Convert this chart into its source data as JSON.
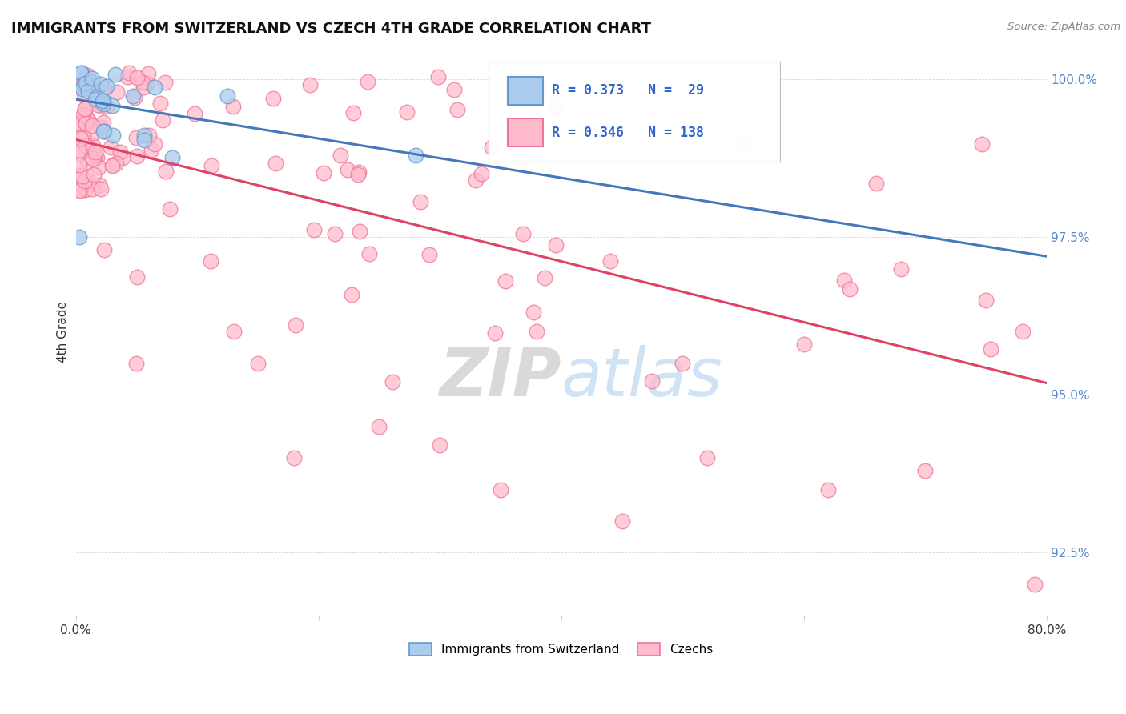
{
  "title": "IMMIGRANTS FROM SWITZERLAND VS CZECH 4TH GRADE CORRELATION CHART",
  "source_text": "Source: ZipAtlas.com",
  "ylabel": "4th Grade",
  "xlim": [
    0.0,
    0.8
  ],
  "ylim": [
    0.915,
    1.005
  ],
  "yticks": [
    0.925,
    0.95,
    0.975,
    1.0
  ],
  "yticklabels": [
    "92.5%",
    "95.0%",
    "97.5%",
    "100.0%"
  ],
  "xtick_positions": [
    0.0,
    0.2,
    0.4,
    0.6,
    0.8
  ],
  "xticklabels": [
    "0.0%",
    "",
    "",
    "",
    "80.0%"
  ],
  "switzerland_R": 0.373,
  "switzerland_N": 29,
  "czech_R": 0.346,
  "czech_N": 138,
  "swiss_edge_color": "#6699CC",
  "swiss_face_color": "#AACCEE",
  "czech_edge_color": "#EE7799",
  "czech_face_color": "#FFBBCC",
  "line_swiss_color": "#4477BB",
  "line_czech_color": "#DD4466",
  "watermark_zip": "ZIP",
  "watermark_atlas": "atlas",
  "legend_swiss_face": "#AACCEE",
  "legend_swiss_edge": "#6699CC",
  "legend_czech_face": "#FFBBCC",
  "legend_czech_edge": "#EE7799"
}
